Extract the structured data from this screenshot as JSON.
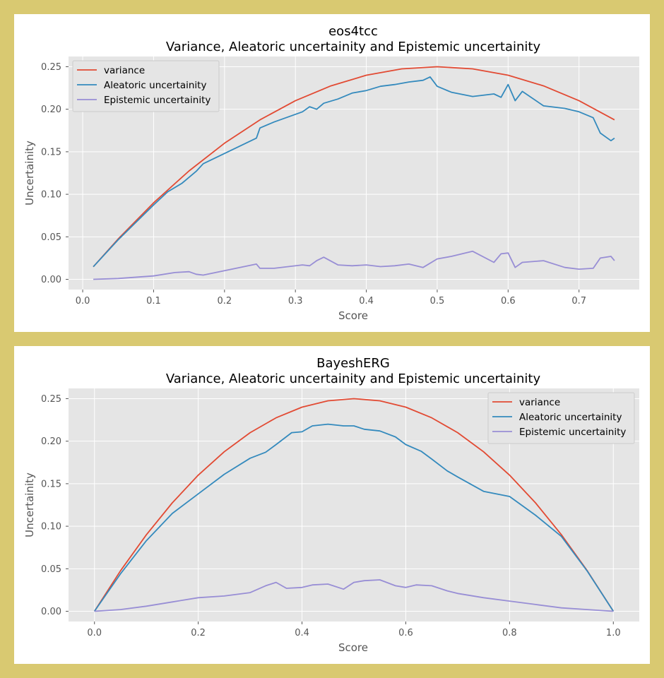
{
  "chart_data": [
    {
      "type": "line",
      "title": "eos4tcc",
      "subtitle": "Variance, Aleatoric uncertainity and Epistemic uncertainity",
      "xlabel": "Score",
      "ylabel": "Uncertainity",
      "xlim": [
        -0.02,
        0.785
      ],
      "ylim": [
        -0.012,
        0.262
      ],
      "xticks": [
        "0.0",
        "0.1",
        "0.2",
        "0.3",
        "0.4",
        "0.5",
        "0.6",
        "0.7"
      ],
      "yticks": [
        "0.00",
        "0.05",
        "0.10",
        "0.15",
        "0.20",
        "0.25"
      ],
      "grid": true,
      "legend": "upper left",
      "series": [
        {
          "name": "variance",
          "color": "#e24a33",
          "x": [
            0.015,
            0.05,
            0.1,
            0.15,
            0.2,
            0.25,
            0.3,
            0.35,
            0.4,
            0.45,
            0.5,
            0.55,
            0.6,
            0.65,
            0.7,
            0.75
          ],
          "y": [
            0.0148,
            0.0475,
            0.09,
            0.1275,
            0.16,
            0.1875,
            0.21,
            0.2275,
            0.24,
            0.2475,
            0.25,
            0.2475,
            0.24,
            0.2275,
            0.21,
            0.1875
          ]
        },
        {
          "name": "Aleatoric uncertainity",
          "color": "#348abd",
          "x": [
            0.015,
            0.05,
            0.1,
            0.12,
            0.14,
            0.16,
            0.17,
            0.2,
            0.245,
            0.25,
            0.27,
            0.31,
            0.32,
            0.33,
            0.34,
            0.36,
            0.38,
            0.4,
            0.42,
            0.44,
            0.46,
            0.48,
            0.49,
            0.5,
            0.52,
            0.55,
            0.58,
            0.59,
            0.6,
            0.61,
            0.62,
            0.65,
            0.68,
            0.7,
            0.72,
            0.73,
            0.745,
            0.75
          ],
          "y": [
            0.0148,
            0.0465,
            0.0875,
            0.103,
            0.113,
            0.127,
            0.136,
            0.148,
            0.166,
            0.178,
            0.185,
            0.197,
            0.203,
            0.2,
            0.207,
            0.212,
            0.219,
            0.222,
            0.227,
            0.229,
            0.232,
            0.234,
            0.238,
            0.227,
            0.22,
            0.215,
            0.218,
            0.214,
            0.229,
            0.21,
            0.221,
            0.204,
            0.201,
            0.197,
            0.19,
            0.172,
            0.163,
            0.166
          ]
        },
        {
          "name": "Epistemic uncertainity",
          "color": "#988ed5",
          "x": [
            0.015,
            0.05,
            0.1,
            0.13,
            0.15,
            0.16,
            0.17,
            0.245,
            0.25,
            0.27,
            0.31,
            0.32,
            0.33,
            0.34,
            0.36,
            0.38,
            0.4,
            0.42,
            0.44,
            0.46,
            0.48,
            0.5,
            0.52,
            0.55,
            0.58,
            0.59,
            0.6,
            0.61,
            0.62,
            0.65,
            0.68,
            0.7,
            0.72,
            0.73,
            0.745,
            0.75
          ],
          "y": [
            0.0,
            0.001,
            0.004,
            0.008,
            0.009,
            0.006,
            0.005,
            0.018,
            0.013,
            0.013,
            0.017,
            0.016,
            0.022,
            0.026,
            0.017,
            0.016,
            0.017,
            0.015,
            0.016,
            0.018,
            0.014,
            0.024,
            0.027,
            0.033,
            0.02,
            0.03,
            0.031,
            0.014,
            0.02,
            0.022,
            0.014,
            0.012,
            0.013,
            0.025,
            0.027,
            0.022
          ]
        }
      ]
    },
    {
      "type": "line",
      "title": "BayeshERG",
      "subtitle": "Variance, Aleatoric uncertainity and Epistemic uncertainity",
      "xlabel": "Score",
      "ylabel": "Uncertainity",
      "xlim": [
        -0.05,
        1.05
      ],
      "ylim": [
        -0.012,
        0.262
      ],
      "xticks": [
        "0.0",
        "0.2",
        "0.4",
        "0.6",
        "0.8",
        "1.0"
      ],
      "yticks": [
        "0.00",
        "0.05",
        "0.10",
        "0.15",
        "0.20",
        "0.25"
      ],
      "grid": true,
      "legend": "upper right",
      "series": [
        {
          "name": "variance",
          "color": "#e24a33",
          "x": [
            0.0,
            0.05,
            0.1,
            0.15,
            0.2,
            0.25,
            0.3,
            0.35,
            0.4,
            0.45,
            0.5,
            0.55,
            0.6,
            0.65,
            0.7,
            0.75,
            0.8,
            0.85,
            0.9,
            0.95,
            1.0
          ],
          "y": [
            0.0,
            0.0475,
            0.09,
            0.1275,
            0.16,
            0.1875,
            0.21,
            0.2275,
            0.24,
            0.2475,
            0.25,
            0.2475,
            0.24,
            0.2275,
            0.21,
            0.1875,
            0.16,
            0.1275,
            0.09,
            0.0475,
            0.0
          ]
        },
        {
          "name": "Aleatoric uncertainity",
          "color": "#348abd",
          "x": [
            0.0,
            0.05,
            0.1,
            0.15,
            0.2,
            0.25,
            0.3,
            0.33,
            0.35,
            0.38,
            0.4,
            0.42,
            0.45,
            0.48,
            0.5,
            0.52,
            0.55,
            0.58,
            0.6,
            0.63,
            0.65,
            0.68,
            0.7,
            0.75,
            0.8,
            0.85,
            0.9,
            0.95,
            1.0
          ],
          "y": [
            0.0,
            0.044,
            0.083,
            0.115,
            0.138,
            0.161,
            0.18,
            0.187,
            0.196,
            0.21,
            0.211,
            0.218,
            0.22,
            0.218,
            0.218,
            0.214,
            0.212,
            0.205,
            0.196,
            0.188,
            0.179,
            0.165,
            0.158,
            0.141,
            0.135,
            0.113,
            0.088,
            0.047,
            0.0
          ]
        },
        {
          "name": "Epistemic uncertainity",
          "color": "#988ed5",
          "x": [
            0.0,
            0.05,
            0.1,
            0.15,
            0.2,
            0.25,
            0.3,
            0.33,
            0.35,
            0.37,
            0.4,
            0.42,
            0.45,
            0.48,
            0.5,
            0.52,
            0.55,
            0.58,
            0.6,
            0.62,
            0.65,
            0.68,
            0.7,
            0.72,
            0.75,
            0.8,
            0.85,
            0.9,
            0.95,
            1.0
          ],
          "y": [
            0.0,
            0.002,
            0.006,
            0.011,
            0.016,
            0.018,
            0.022,
            0.03,
            0.034,
            0.027,
            0.028,
            0.031,
            0.032,
            0.026,
            0.034,
            0.036,
            0.037,
            0.03,
            0.028,
            0.031,
            0.03,
            0.024,
            0.021,
            0.019,
            0.016,
            0.012,
            0.008,
            0.004,
            0.002,
            0.0
          ]
        }
      ]
    }
  ]
}
